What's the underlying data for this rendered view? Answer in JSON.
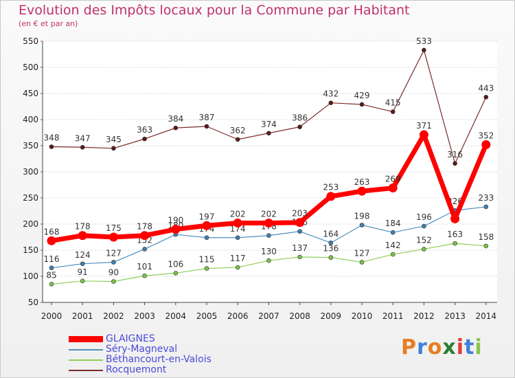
{
  "chart_data": {
    "type": "line",
    "title": "Evolution des Impôts locaux pour la Commune par Habitant",
    "subtitle": "(en € et par an)",
    "xlabel": "",
    "ylabel": "",
    "ylim": [
      50,
      550
    ],
    "yticks": [
      "50",
      "100",
      "150",
      "200",
      "250",
      "300",
      "350",
      "400",
      "450",
      "500",
      "550"
    ],
    "categories": [
      "2000",
      "2001",
      "2002",
      "2003",
      "2004",
      "2005",
      "2006",
      "2007",
      "2008",
      "2009",
      "2010",
      "2011",
      "2012",
      "2013",
      "2014"
    ],
    "series": [
      {
        "name": "Rocquemont",
        "color": "#7a2a2a",
        "values": [
          348,
          347,
          345,
          363,
          384,
          387,
          362,
          374,
          386,
          432,
          429,
          415,
          533,
          316,
          443
        ],
        "labels": [
          "348",
          "347",
          "345",
          "363",
          "384",
          "387",
          "362",
          "374",
          "386",
          "432",
          "429",
          "415",
          "533",
          "316",
          "443"
        ]
      },
      {
        "name": "Séry-Magneval",
        "color": "#4f8fc0",
        "values": [
          116,
          124,
          127,
          152,
          180,
          174,
          174,
          178,
          186,
          164,
          198,
          184,
          196,
          226,
          233
        ],
        "labels": [
          "116",
          "124",
          "127",
          "152",
          "180",
          "174",
          "174",
          "178",
          "186",
          "164",
          "198",
          "184",
          "196",
          "226",
          "233"
        ]
      },
      {
        "name": "Béthancourt-en-Valois",
        "color": "#8ed05a",
        "values": [
          85,
          91,
          90,
          101,
          106,
          115,
          117,
          130,
          137,
          136,
          127,
          142,
          152,
          163,
          158
        ],
        "labels": [
          "85",
          "91",
          "90",
          "101",
          "106",
          "115",
          "117",
          "130",
          "137",
          "136",
          "127",
          "142",
          "152",
          "163",
          "158"
        ]
      },
      {
        "name": "GLAIGNES",
        "color": "#ff0000",
        "values": [
          168,
          178,
          175,
          178,
          190,
          197,
          202,
          202,
          203,
          253,
          263,
          269,
          371,
          210,
          352
        ],
        "labels": [
          "168",
          "178",
          "175",
          "178",
          "190",
          "197",
          "202",
          "202",
          "203",
          "253",
          "263",
          "269",
          "371",
          "",
          "352"
        ]
      }
    ],
    "legend": [
      "GLAIGNES",
      "Séry-Magneval",
      "Béthancourt-en-Valois",
      "Rocquemont"
    ],
    "legend_position": "bottom-left",
    "grid": "horizontal",
    "brand": "Proxiti"
  }
}
